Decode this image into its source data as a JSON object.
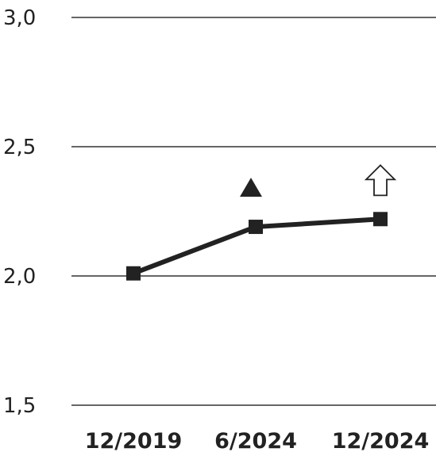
{
  "chart_data": {
    "type": "line",
    "title": "",
    "xlabel": "",
    "ylabel": "",
    "categories": [
      "12/2019",
      "6/2024",
      "12/2024"
    ],
    "series": [
      {
        "values": [
          2.01,
          2.19,
          2.22
        ],
        "color": "#222222",
        "marker": "square"
      }
    ],
    "ylim": [
      1.5,
      3.0
    ],
    "yticks": [
      "3,0",
      "2,5",
      "2,0",
      "1,5"
    ],
    "ytick_values": [
      3.0,
      2.5,
      2.0,
      1.5
    ],
    "grid": "horizontal",
    "legend": "none",
    "annotations": [
      {
        "category": "6/2024",
        "value": 2.34,
        "icon": "filled-triangle-up-icon"
      },
      {
        "category": "12/2024",
        "value": 2.37,
        "icon": "outline-arrow-up-icon"
      }
    ]
  }
}
